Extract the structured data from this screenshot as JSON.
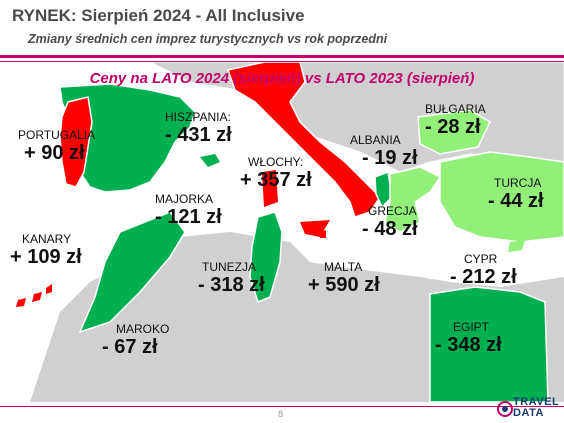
{
  "header": {
    "title": "RYNEK: Sierpień 2024 - All Inclusive",
    "subtitle": "Zmiany średnich cen imprez turystycznych vs rok poprzedni"
  },
  "map": {
    "title": "Ceny na LATO 2024 (sierpień) vs  LATO 2023 (sierpień)",
    "colors": {
      "increase": "#ff0000",
      "decrease": "#00b050",
      "decrease_light": "#92f07a",
      "sea": "#ffffff",
      "land": "#d0d0d0"
    },
    "countries": [
      {
        "name": "PORTUGALIA",
        "value": "+ 90 zł",
        "trend": "increase"
      },
      {
        "name": "HISZPANIA:",
        "value": "- 431 zł",
        "trend": "decrease"
      },
      {
        "name": "MAJORKA",
        "value": "- 121 zł",
        "trend": "decrease"
      },
      {
        "name": "KANARY",
        "value": "+ 109 zł",
        "trend": "increase"
      },
      {
        "name": "MAROKO",
        "value": "- 67 zł",
        "trend": "decrease"
      },
      {
        "name": "WŁOCHY:",
        "value": "+ 357 zł",
        "trend": "increase"
      },
      {
        "name": "TUNEZJA",
        "value": "- 318 zł",
        "trend": "decrease"
      },
      {
        "name": "MALTA",
        "value": "+ 590 zł",
        "trend": "increase"
      },
      {
        "name": "ALBANIA",
        "value": "- 19 zł",
        "trend": "decrease"
      },
      {
        "name": "GRECJA",
        "value": "- 48 zł",
        "trend": "decrease"
      },
      {
        "name": "BUŁGARIA",
        "value": "- 28 zł",
        "trend": "decrease"
      },
      {
        "name": "TURCJA",
        "value": "- 44 zł",
        "trend": "decrease"
      },
      {
        "name": "CYPR",
        "value": "- 212 zł",
        "trend": "decrease"
      },
      {
        "name": "EGIPT",
        "value": "- 348 zł",
        "trend": "decrease"
      }
    ]
  },
  "footer": {
    "page": "8",
    "logo": {
      "line1": "TRAVEL",
      "line2": "DATA"
    }
  }
}
